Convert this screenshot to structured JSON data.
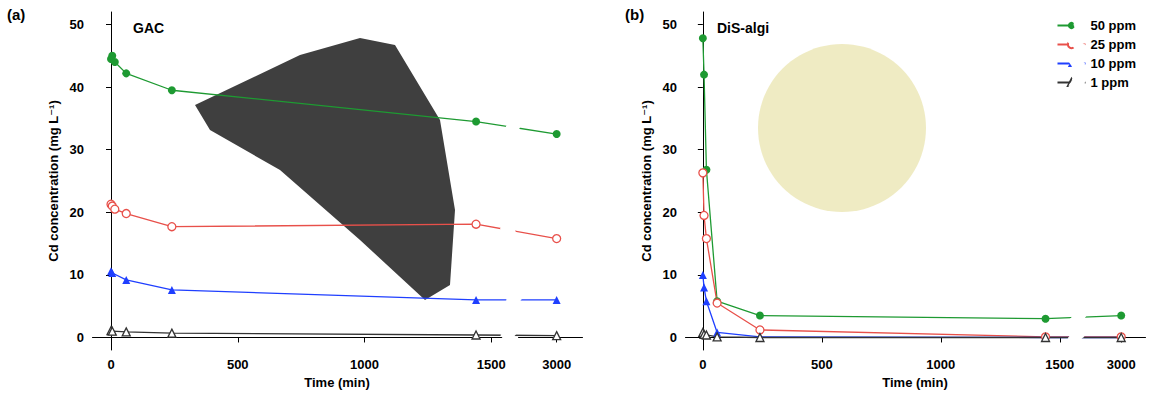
{
  "chart_data": [
    {
      "type": "line",
      "label": "(a)",
      "title": "GAC",
      "x_label": "Time (min)",
      "y_label": "Cd concentration (mg L⁻¹)",
      "xlim": [
        -75,
        3100
      ],
      "xticks": [
        0,
        500,
        1000,
        1500,
        3000
      ],
      "xbreak": [
        1550,
        2850
      ],
      "ylim": [
        -2,
        52
      ],
      "yticks": [
        0,
        10,
        20,
        30,
        40,
        50
      ],
      "grid": false,
      "series": [
        {
          "name": "50 ppm",
          "color": "#1e9a32",
          "marker": "circle",
          "x": [
            0,
            5,
            15,
            60,
            240,
            1440,
            3000
          ],
          "values": [
            44.5,
            45,
            44,
            42.2,
            39.5,
            34.5,
            32.5
          ]
        },
        {
          "name": "25 ppm",
          "color": "#e8504a",
          "marker": "circle-open",
          "x": [
            0,
            5,
            15,
            60,
            240,
            1440,
            3000
          ],
          "values": [
            21.3,
            21,
            20.5,
            19.8,
            17.7,
            18.1,
            15.8
          ]
        },
        {
          "name": "10 ppm",
          "color": "#1f3fff",
          "marker": "triangle",
          "x": [
            0,
            5,
            60,
            240,
            1440,
            3000
          ],
          "values": [
            10.6,
            10.3,
            9.2,
            7.6,
            6.0,
            6.0
          ]
        },
        {
          "name": "1 ppm",
          "color": "#333333",
          "marker": "triangle-open",
          "x": [
            0,
            5,
            60,
            240,
            1440,
            3000
          ],
          "values": [
            1.1,
            1.0,
            0.9,
            0.7,
            0.4,
            0.3
          ]
        }
      ]
    },
    {
      "type": "line",
      "label": "(b)",
      "title": "DiS-algi",
      "x_label": "Time (min)",
      "y_label": "Cd concentration (mg L⁻¹)",
      "xlim": [
        -75,
        3100
      ],
      "xticks": [
        0,
        500,
        1000,
        1500,
        3000
      ],
      "xbreak": [
        1550,
        2850
      ],
      "ylim": [
        -2,
        52
      ],
      "yticks": [
        0,
        10,
        20,
        30,
        40,
        50
      ],
      "grid": false,
      "legend": "upper right",
      "series": [
        {
          "name": "50 ppm",
          "color": "#1e9a32",
          "marker": "circle",
          "x": [
            0,
            5,
            15,
            60,
            240,
            1440,
            3000
          ],
          "values": [
            47.8,
            42,
            26.8,
            5.8,
            3.5,
            3.0,
            3.5
          ]
        },
        {
          "name": "25 ppm",
          "color": "#e8504a",
          "marker": "circle-open",
          "x": [
            0,
            5,
            15,
            60,
            240,
            1440,
            3000
          ],
          "values": [
            26.3,
            19.5,
            15.8,
            5.5,
            1.2,
            0.1,
            0.1
          ]
        },
        {
          "name": "10 ppm",
          "color": "#1f3fff",
          "marker": "triangle",
          "x": [
            0,
            5,
            15,
            60,
            240,
            1440,
            3000
          ],
          "values": [
            10,
            8,
            5.8,
            0.8,
            0.1,
            0,
            0
          ]
        },
        {
          "name": "1 ppm",
          "color": "#333333",
          "marker": "triangle-open",
          "x": [
            0,
            5,
            15,
            60,
            240,
            1440,
            3000
          ],
          "values": [
            0.8,
            0.5,
            0.4,
            0.1,
            0,
            0,
            0
          ]
        }
      ]
    }
  ]
}
